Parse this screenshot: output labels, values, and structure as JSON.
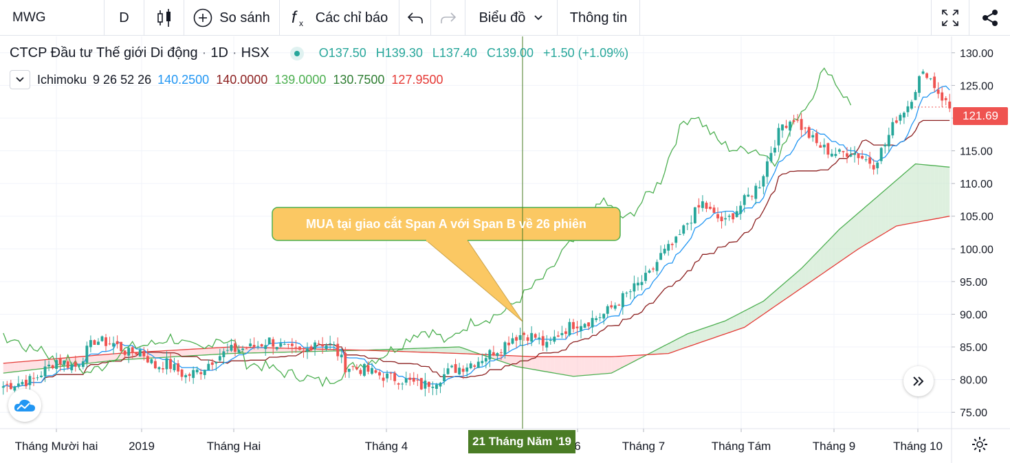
{
  "toolbar": {
    "symbol": "MWG",
    "interval": "D",
    "compare_label": "So sánh",
    "indicators_label": "Các chỉ báo",
    "chart_menu_label": "Biểu đồ",
    "info_label": "Thông tin"
  },
  "legend": {
    "title": "CTCP Đầu tư Thế giới Di động",
    "sep1": "·",
    "interval": "1D",
    "sep2": "·",
    "exchange": "HSX",
    "open": "O137.50",
    "high": "H139.30",
    "low": "L137.40",
    "close": "C139.00",
    "change": "+1.50 (+1.09%)",
    "indicator_name": "Ichimoku",
    "indicator_params": "9 26 52 26",
    "ind_values": [
      "140.2500",
      "140.0000",
      "139.0000",
      "130.7500",
      "127.9500"
    ],
    "ind_colors": [
      "#2196f3",
      "#8b1e1e",
      "#4caf50",
      "#2e7d32",
      "#e53935"
    ]
  },
  "annotation": {
    "text": "MUA tại giao cắt Span A với Span B về 26 phiên"
  },
  "price_tag": "121.69",
  "crosshair_date": "21 Tháng Năm '19",
  "chart_data": {
    "type": "candlestick",
    "y_axis": {
      "ticks": [
        "130.00",
        "125.00",
        "120.00",
        "115.00",
        "110.00",
        "105.00",
        "100.00",
        "95.00",
        "90.00",
        "85.00",
        "80.00",
        "75.00"
      ],
      "range": [
        72.5,
        132.5
      ]
    },
    "x_axis": {
      "ticks": [
        "Tháng Mười hai",
        "2019",
        "Tháng Hai",
        "Tháng 4",
        "6",
        "Tháng 7",
        "Tháng Tám",
        "Tháng 9",
        "Tháng 10"
      ]
    },
    "colors": {
      "up": "#26a69a",
      "down": "#ef5350",
      "conversion": "#2196f3",
      "base": "#8b1e1e",
      "lagging": "#4caf50",
      "span_a": "#4caf50",
      "span_b": "#e53935",
      "cloud_up": "#c8e6c9",
      "cloud_down": "#ffcdd2"
    },
    "close_points": [
      [
        0,
        79
      ],
      [
        8,
        80
      ],
      [
        14,
        83
      ],
      [
        19,
        82
      ],
      [
        24,
        86
      ],
      [
        29,
        85.5
      ],
      [
        33,
        84
      ],
      [
        36,
        84.5
      ],
      [
        40,
        82
      ],
      [
        43,
        82.5
      ],
      [
        48,
        80.5
      ],
      [
        52,
        81.5
      ],
      [
        56,
        83.5
      ],
      [
        60,
        84.5
      ],
      [
        66,
        85
      ],
      [
        70,
        86
      ],
      [
        75,
        84.5
      ],
      [
        79,
        84
      ],
      [
        82,
        86
      ],
      [
        87,
        85
      ],
      [
        90,
        82
      ],
      [
        95,
        81.5
      ],
      [
        100,
        80.5
      ],
      [
        105,
        80
      ],
      [
        110,
        79
      ],
      [
        114,
        80
      ],
      [
        118,
        81.5
      ],
      [
        121,
        82
      ],
      [
        125,
        83
      ],
      [
        128,
        84
      ],
      [
        131,
        85
      ],
      [
        134,
        86.5
      ],
      [
        137,
        87
      ],
      [
        140,
        86.5
      ],
      [
        143,
        85
      ],
      [
        146,
        87
      ],
      [
        150,
        88.5
      ],
      [
        154,
        89
      ],
      [
        158,
        90
      ],
      [
        162,
        92
      ],
      [
        166,
        94
      ],
      [
        170,
        96
      ],
      [
        173,
        99
      ],
      [
        177,
        101
      ],
      [
        180,
        104
      ],
      [
        184,
        107
      ],
      [
        187,
        105
      ],
      [
        190,
        104
      ],
      [
        193,
        106
      ],
      [
        196,
        108
      ],
      [
        199,
        110
      ],
      [
        202,
        115
      ],
      [
        205,
        119
      ],
      [
        208,
        120
      ],
      [
        211,
        118
      ],
      [
        214,
        116
      ],
      [
        217,
        115
      ],
      [
        220,
        114.5
      ],
      [
        223,
        115
      ],
      [
        226,
        114
      ],
      [
        229,
        113
      ],
      [
        232,
        116
      ],
      [
        235,
        120
      ],
      [
        238,
        122
      ],
      [
        241,
        126
      ],
      [
        243,
        127
      ],
      [
        246,
        124
      ],
      [
        249,
        121.5
      ]
    ],
    "span_a": [
      [
        0,
        81
      ],
      [
        30,
        83
      ],
      [
        60,
        84
      ],
      [
        95,
        84.5
      ],
      [
        120,
        85
      ],
      [
        135,
        82
      ],
      [
        150,
        80.5
      ],
      [
        160,
        81
      ],
      [
        170,
        84
      ],
      [
        180,
        87
      ],
      [
        190,
        89
      ],
      [
        200,
        92
      ],
      [
        210,
        97
      ],
      [
        220,
        103
      ],
      [
        230,
        108
      ],
      [
        240,
        113
      ],
      [
        249,
        112.5
      ]
    ],
    "span_b": [
      [
        0,
        82.5
      ],
      [
        30,
        84
      ],
      [
        60,
        85
      ],
      [
        95,
        84.5
      ],
      [
        120,
        84
      ],
      [
        140,
        83.5
      ],
      [
        160,
        83.5
      ],
      [
        175,
        84
      ],
      [
        185,
        86
      ],
      [
        195,
        88
      ],
      [
        205,
        92
      ],
      [
        215,
        96
      ],
      [
        225,
        100
      ],
      [
        235,
        103.5
      ],
      [
        249,
        105
      ]
    ]
  }
}
